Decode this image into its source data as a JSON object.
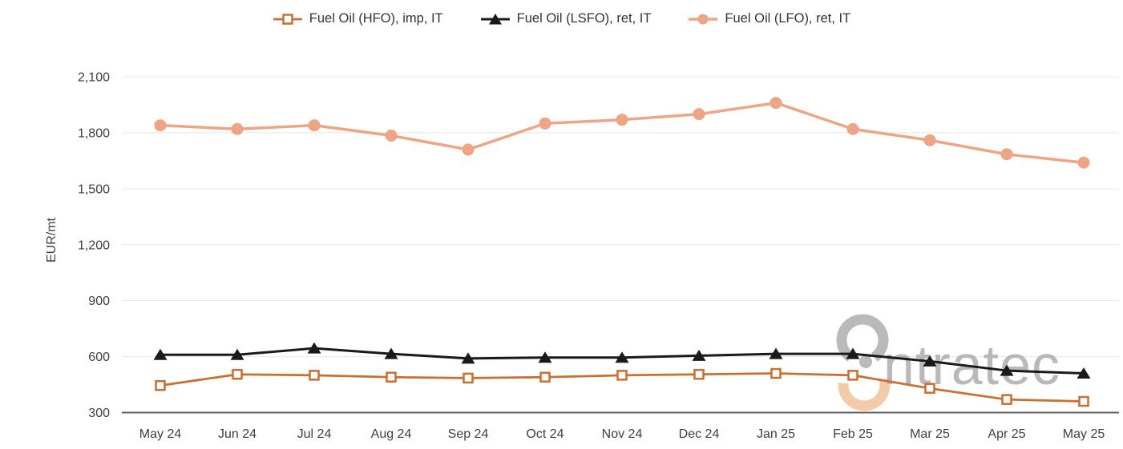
{
  "chart_data": {
    "type": "line",
    "title": "",
    "ylabel": "EUR/mt",
    "xlabel": "",
    "categories": [
      "May 24",
      "Jun 24",
      "Jul 24",
      "Aug 24",
      "Sep 24",
      "Oct 24",
      "Nov 24",
      "Dec 24",
      "Jan 25",
      "Feb 25",
      "Mar 25",
      "Apr 25",
      "May 25"
    ],
    "ylim": [
      300,
      2100
    ],
    "yticks": [
      300,
      600,
      900,
      1200,
      1500,
      1800,
      2100
    ],
    "ytick_labels": [
      "300",
      "600",
      "900",
      "1,200",
      "1,500",
      "1,800",
      "2,100"
    ],
    "grid": "horizontal",
    "legend_position": "top",
    "series": [
      {
        "id": "hfo",
        "name": "Fuel Oil (HFO), imp, IT",
        "marker": "square-open",
        "color": "#CE6E2E",
        "line_width": 2.75,
        "values": [
          445,
          505,
          500,
          490,
          485,
          490,
          500,
          505,
          510,
          500,
          430,
          370,
          360
        ]
      },
      {
        "id": "lsfo",
        "name": "Fuel Oil (LSFO), ret, IT",
        "marker": "triangle",
        "color": "#1A1A1A",
        "line_width": 3,
        "values": [
          610,
          610,
          645,
          615,
          590,
          595,
          595,
          605,
          615,
          615,
          575,
          525,
          510
        ]
      },
      {
        "id": "lfo",
        "name": "Fuel Oil (LFO), ret, IT",
        "marker": "circle",
        "color": "#EFA584",
        "line_width": 3.5,
        "values": [
          1840,
          1820,
          1840,
          1785,
          1710,
          1850,
          1870,
          1900,
          1960,
          1820,
          1760,
          1685,
          1640
        ]
      }
    ]
  },
  "watermark": {
    "text": "ntratec",
    "text_color": "#ADADAD",
    "logo_gray": "#A6A6A6",
    "logo_orange": "#F3C59E"
  },
  "axis_colors": {
    "grid": "#E7E7E7",
    "axis_line": "#5E5E5E",
    "tick_text": "#3F3F3F"
  }
}
